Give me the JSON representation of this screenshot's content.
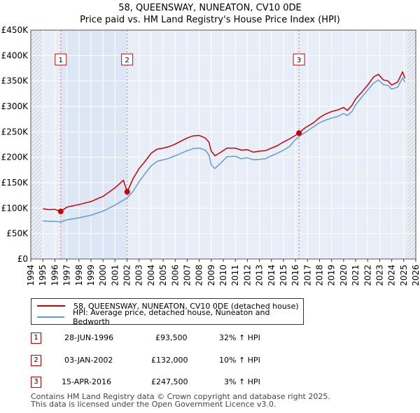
{
  "title_line1": "58, QUEENSWAY, NUNEATON, CV10 0DE",
  "title_line2": "Price paid vs. HM Land Registry's House Price Index (HPI)",
  "chart_data": {
    "type": "line",
    "x_range": [
      1994,
      2026
    ],
    "ylim": [
      0,
      450000
    ],
    "y_ticks": [
      {
        "value": 0,
        "label": "£0"
      },
      {
        "value": 50000,
        "label": "£50K"
      },
      {
        "value": 100000,
        "label": "£100K"
      },
      {
        "value": 150000,
        "label": "£150K"
      },
      {
        "value": 200000,
        "label": "£200K"
      },
      {
        "value": 250000,
        "label": "£250K"
      },
      {
        "value": 300000,
        "label": "£300K"
      },
      {
        "value": 350000,
        "label": "£350K"
      },
      {
        "value": 400000,
        "label": "£400K"
      },
      {
        "value": 450000,
        "label": "£450K"
      }
    ],
    "x_ticks": [
      "1994",
      "1995",
      "1996",
      "1997",
      "1998",
      "1999",
      "2000",
      "2001",
      "2002",
      "2003",
      "2004",
      "2005",
      "2006",
      "2007",
      "2008",
      "2009",
      "2010",
      "2011",
      "2012",
      "2013",
      "2014",
      "2015",
      "2016",
      "2017",
      "2018",
      "2019",
      "2020",
      "2021",
      "2022",
      "2023",
      "2024",
      "2025",
      "2026"
    ],
    "data_start": 1995.0,
    "data_end": 2025.3,
    "sales": [
      {
        "label": "1",
        "year": 1996.49,
        "price": 93500
      },
      {
        "label": "2",
        "year": 2002.01,
        "price": 132000
      },
      {
        "label": "3",
        "year": 2016.29,
        "price": 247500
      }
    ],
    "series": [
      {
        "name": "58, QUEENSWAY, NUNEATON, CV10 0DE (detached house)",
        "color": "#cc0000",
        "points": [
          [
            1995.0,
            99000
          ],
          [
            1995.5,
            97000
          ],
          [
            1996.0,
            97500
          ],
          [
            1996.49,
            93500
          ],
          [
            1997.0,
            102000
          ],
          [
            1998.0,
            107000
          ],
          [
            1999.0,
            113000
          ],
          [
            2000.0,
            123000
          ],
          [
            2001.0,
            140000
          ],
          [
            2001.7,
            155000
          ],
          [
            2002.01,
            132000
          ],
          [
            2002.5,
            158000
          ],
          [
            2003.0,
            178000
          ],
          [
            2003.5,
            192000
          ],
          [
            2004.0,
            208000
          ],
          [
            2004.5,
            216000
          ],
          [
            2005.0,
            218000
          ],
          [
            2005.5,
            221000
          ],
          [
            2006.0,
            226000
          ],
          [
            2006.5,
            232000
          ],
          [
            2007.0,
            238000
          ],
          [
            2007.5,
            242000
          ],
          [
            2008.0,
            243000
          ],
          [
            2008.5,
            238000
          ],
          [
            2008.8,
            230000
          ],
          [
            2009.0,
            212000
          ],
          [
            2009.3,
            203000
          ],
          [
            2009.8,
            210000
          ],
          [
            2010.3,
            218000
          ],
          [
            2011.0,
            218000
          ],
          [
            2011.5,
            214000
          ],
          [
            2012.0,
            215000
          ],
          [
            2012.5,
            210000
          ],
          [
            2013.0,
            212000
          ],
          [
            2013.5,
            213000
          ],
          [
            2014.0,
            218000
          ],
          [
            2014.5,
            223000
          ],
          [
            2015.0,
            230000
          ],
          [
            2015.5,
            236000
          ],
          [
            2016.0,
            243000
          ],
          [
            2016.29,
            247500
          ],
          [
            2016.8,
            258000
          ],
          [
            2017.5,
            268000
          ],
          [
            2018.0,
            278000
          ],
          [
            2018.5,
            285000
          ],
          [
            2019.0,
            290000
          ],
          [
            2019.5,
            293000
          ],
          [
            2020.0,
            298000
          ],
          [
            2020.3,
            292000
          ],
          [
            2020.7,
            302000
          ],
          [
            2021.0,
            315000
          ],
          [
            2021.5,
            328000
          ],
          [
            2022.0,
            342000
          ],
          [
            2022.5,
            358000
          ],
          [
            2022.9,
            363000
          ],
          [
            2023.3,
            352000
          ],
          [
            2023.7,
            350000
          ],
          [
            2024.0,
            342000
          ],
          [
            2024.5,
            348000
          ],
          [
            2024.9,
            368000
          ],
          [
            2025.1,
            355000
          ]
        ]
      },
      {
        "name": "HPI: Average price, detached house, Nuneaton and Bedworth",
        "color": "#6699cc",
        "points": [
          [
            1995.0,
            75000
          ],
          [
            1995.5,
            74000
          ],
          [
            1996.0,
            74000
          ],
          [
            1996.5,
            73000
          ],
          [
            1997.0,
            77000
          ],
          [
            1998.0,
            81000
          ],
          [
            1999.0,
            86000
          ],
          [
            2000.0,
            94000
          ],
          [
            2001.0,
            106000
          ],
          [
            2002.0,
            120000
          ],
          [
            2002.5,
            133000
          ],
          [
            2003.0,
            152000
          ],
          [
            2003.5,
            168000
          ],
          [
            2004.0,
            183000
          ],
          [
            2004.5,
            192000
          ],
          [
            2005.0,
            195000
          ],
          [
            2005.5,
            198000
          ],
          [
            2006.0,
            203000
          ],
          [
            2006.5,
            208000
          ],
          [
            2007.0,
            213000
          ],
          [
            2007.5,
            217000
          ],
          [
            2008.0,
            218000
          ],
          [
            2008.5,
            214000
          ],
          [
            2008.8,
            205000
          ],
          [
            2009.0,
            185000
          ],
          [
            2009.3,
            178000
          ],
          [
            2009.8,
            189000
          ],
          [
            2010.3,
            201000
          ],
          [
            2011.0,
            202000
          ],
          [
            2011.5,
            197000
          ],
          [
            2012.0,
            199000
          ],
          [
            2012.5,
            195000
          ],
          [
            2013.0,
            196000
          ],
          [
            2013.5,
            197000
          ],
          [
            2014.0,
            203000
          ],
          [
            2014.5,
            208000
          ],
          [
            2015.0,
            214000
          ],
          [
            2015.5,
            221000
          ],
          [
            2016.0,
            235000
          ],
          [
            2016.5,
            244000
          ],
          [
            2017.0,
            252000
          ],
          [
            2017.5,
            260000
          ],
          [
            2018.0,
            268000
          ],
          [
            2018.5,
            273000
          ],
          [
            2019.0,
            277000
          ],
          [
            2019.5,
            280000
          ],
          [
            2020.0,
            286000
          ],
          [
            2020.3,
            282000
          ],
          [
            2020.7,
            290000
          ],
          [
            2021.0,
            303000
          ],
          [
            2021.5,
            318000
          ],
          [
            2022.0,
            332000
          ],
          [
            2022.5,
            346000
          ],
          [
            2022.9,
            352000
          ],
          [
            2023.3,
            343000
          ],
          [
            2023.7,
            341000
          ],
          [
            2024.0,
            334000
          ],
          [
            2024.5,
            338000
          ],
          [
            2024.9,
            356000
          ],
          [
            2025.1,
            348000
          ]
        ]
      }
    ]
  },
  "legend": {
    "property_label": "58, QUEENSWAY, NUNEATON, CV10 0DE (detached house)",
    "hpi_label": "HPI: Average price, detached house, Nuneaton and Bedworth"
  },
  "transactions": [
    {
      "num": "1",
      "date": "28-JUN-1996",
      "price": "£93,500",
      "hpi": "32% ↑ HPI"
    },
    {
      "num": "2",
      "date": "03-JAN-2002",
      "price": "£132,000",
      "hpi": "10% ↑ HPI"
    },
    {
      "num": "3",
      "date": "15-APR-2016",
      "price": "£247,500",
      "hpi": "3% ↑ HPI"
    }
  ],
  "footer_line1": "Contains HM Land Registry data © Crown copyright and database right 2025.",
  "footer_line2": "This data is licensed under the Open Government Licence v3.0.",
  "colors": {
    "property": "#cc0000",
    "hpi": "#6699cc",
    "plot_bg": "#e8eef7",
    "grid": "#ffffff",
    "sale_band": "#dde6f4"
  }
}
